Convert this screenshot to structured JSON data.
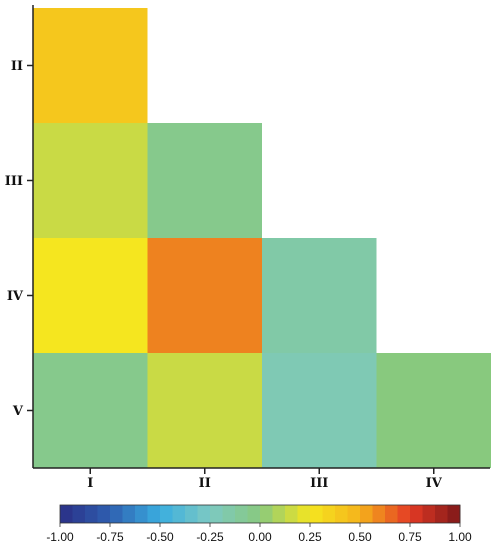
{
  "chart_data": {
    "type": "heatmap",
    "title": "",
    "xlabel": "",
    "ylabel": "",
    "x_categories": [
      "I",
      "II",
      "III",
      "IV"
    ],
    "y_categories": [
      "II",
      "III",
      "IV",
      "V"
    ],
    "cells": [
      {
        "row": "II",
        "col": "I",
        "value": 0.4
      },
      {
        "row": "III",
        "col": "I",
        "value": 0.15
      },
      {
        "row": "III",
        "col": "II",
        "value": -0.05
      },
      {
        "row": "IV",
        "col": "I",
        "value": 0.25
      },
      {
        "row": "IV",
        "col": "II",
        "value": 0.6
      },
      {
        "row": "IV",
        "col": "III",
        "value": -0.15
      },
      {
        "row": "V",
        "col": "I",
        "value": -0.05
      },
      {
        "row": "V",
        "col": "II",
        "value": 0.15
      },
      {
        "row": "V",
        "col": "III",
        "value": -0.2
      },
      {
        "row": "V",
        "col": "IV",
        "value": 0.0
      }
    ],
    "colorbar": {
      "range": [
        -1.0,
        1.0
      ],
      "ticks": [
        "-1.00",
        "-0.75",
        "-0.50",
        "-0.25",
        "0.00",
        "0.25",
        "0.50",
        "0.75",
        "1.00"
      ],
      "colors": [
        "#2a2f86",
        "#2f5fb0",
        "#3aaee0",
        "#7dc9c2",
        "#88c97e",
        "#f5e61f",
        "#f5b21b",
        "#e43a25",
        "#7d1818"
      ]
    },
    "grid": false,
    "legend": "colorbar-bottom"
  }
}
